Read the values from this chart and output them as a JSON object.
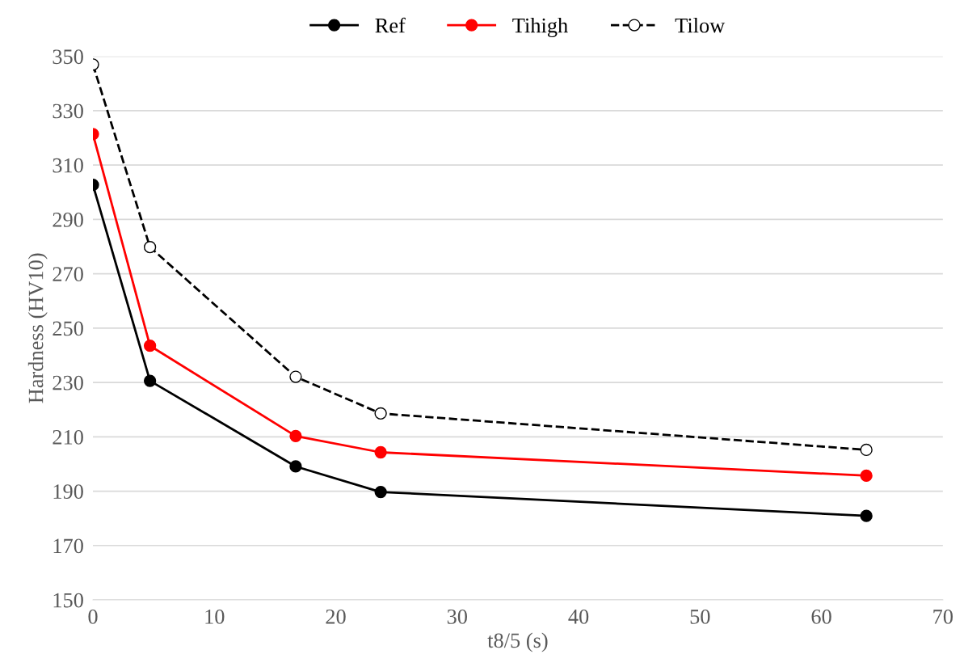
{
  "chart_data": {
    "type": "line",
    "xlabel": "t8/5 (s)",
    "ylabel": "Hardness (HV10)",
    "xlim": [
      0,
      70
    ],
    "xticks": [
      0,
      10,
      20,
      30,
      40,
      50,
      60,
      70
    ],
    "ylim": [
      150,
      350
    ],
    "yticks": [
      150,
      170,
      190,
      210,
      230,
      250,
      270,
      290,
      310,
      330,
      350
    ],
    "grid": "y",
    "legend": "top",
    "marker": "circle",
    "series": [
      {
        "name": "Ref",
        "color": "#000000",
        "x": [
          0,
          4.7,
          16.7,
          23.7,
          63.7
        ],
        "values": [
          302.7,
          230.6,
          199.1,
          189.7,
          180.9
        ]
      },
      {
        "name": "Tihigh",
        "color": "#ff0000",
        "x": [
          0,
          4.7,
          16.7,
          23.7,
          63.7
        ],
        "values": [
          321.4,
          243.5,
          210.3,
          204.3,
          195.7
        ]
      },
      {
        "name": "Tilow",
        "color": "#000000",
        "x": [
          0,
          4.7,
          16.7,
          23.7,
          63.7
        ],
        "values": [
          347,
          279.8,
          232.1,
          218.6,
          205.2
        ],
        "line_style": "dashed"
      }
    ]
  }
}
